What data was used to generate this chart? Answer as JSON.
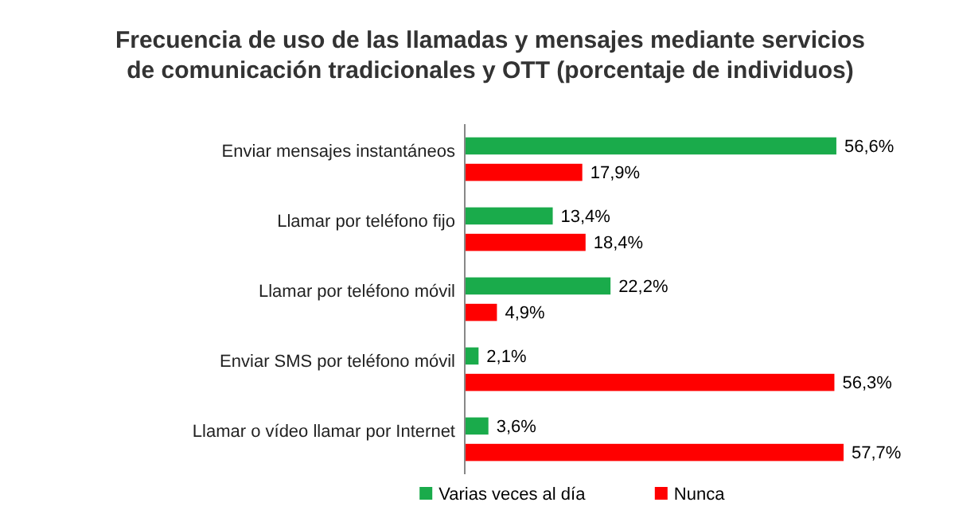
{
  "chart_data": {
    "type": "bar",
    "orientation": "horizontal",
    "title": "Frecuencia de uso de las llamadas y mensajes mediante servicios de comunicación tradicionales y OTT (porcentaje de individuos)",
    "categories": [
      "Enviar mensajes instantáneos",
      "Llamar por teléfono fijo",
      "Llamar por teléfono móvil",
      "Enviar SMS por teléfono móvil",
      "Llamar o vídeo llamar por Internet"
    ],
    "series": [
      {
        "name": "Varias veces al día",
        "color": "#1aab4b",
        "values": [
          56.6,
          13.4,
          22.2,
          2.1,
          3.6
        ],
        "value_labels": [
          "56,6%",
          "13,4%",
          "22,2%",
          "2,1%",
          "3,6%"
        ]
      },
      {
        "name": "Nunca",
        "color": "#ff0000",
        "values": [
          17.9,
          18.4,
          4.9,
          56.3,
          57.7
        ],
        "value_labels": [
          "17,9%",
          "18,4%",
          "4,9%",
          "56,3%",
          "57,7%"
        ]
      }
    ],
    "legend": "bottom",
    "grid": false
  }
}
